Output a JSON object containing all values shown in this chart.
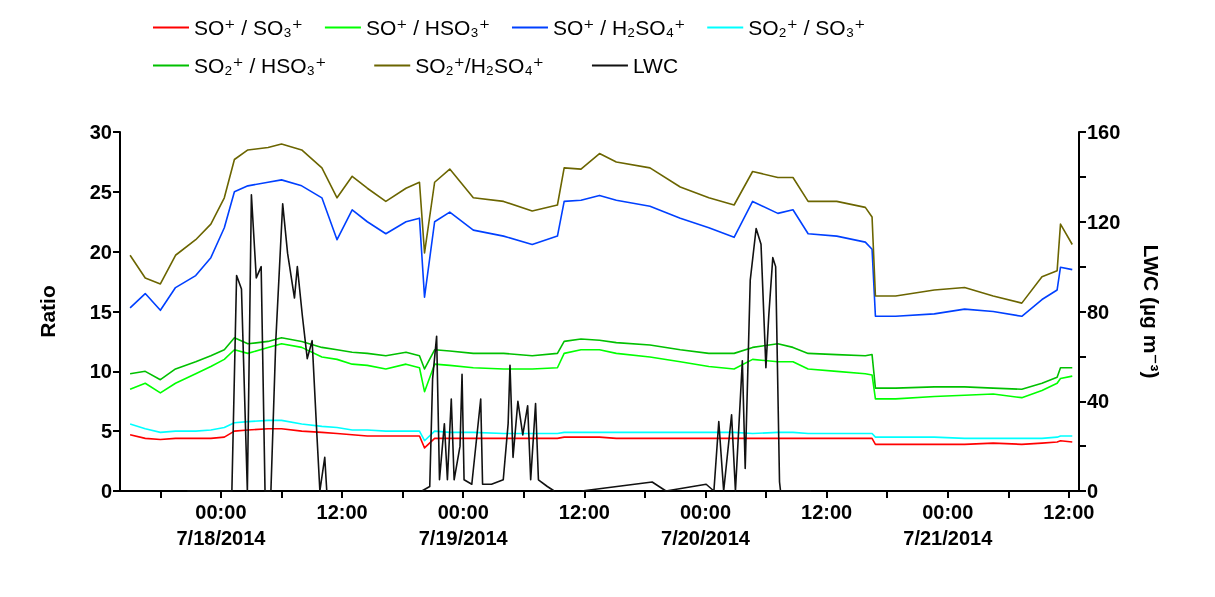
{
  "chart_data": {
    "type": "line",
    "ylabel": "Ratio",
    "y2label": "LWC (µg m⁻³)",
    "x": [
      "2014-07-17T15:00",
      "2014-07-17T16:30",
      "2014-07-17T18:00",
      "2014-07-17T19:30",
      "2014-07-17T21:30",
      "2014-07-17T23:00",
      "2014-07-18T00:20",
      "2014-07-18T01:20",
      "2014-07-18T02:40",
      "2014-07-18T04:40",
      "2014-07-18T06:00",
      "2014-07-18T08:00",
      "2014-07-18T10:00",
      "2014-07-18T11:30",
      "2014-07-18T13:00",
      "2014-07-18T14:30",
      "2014-07-18T16:20",
      "2014-07-18T18:20",
      "2014-07-18T19:40",
      "2014-07-18T20:10",
      "2014-07-18T21:10",
      "2014-07-18T22:40",
      "2014-07-19T01:00",
      "2014-07-19T04:00",
      "2014-07-19T06:50",
      "2014-07-19T09:20",
      "2014-07-19T10:00",
      "2014-07-19T11:40",
      "2014-07-19T13:30",
      "2014-07-19T15:10",
      "2014-07-19T18:30",
      "2014-07-19T21:30",
      "2014-07-20T00:20",
      "2014-07-20T02:50",
      "2014-07-20T04:40",
      "2014-07-20T07:10",
      "2014-07-20T08:40",
      "2014-07-20T10:10",
      "2014-07-20T13:00",
      "2014-07-20T15:50",
      "2014-07-20T16:30",
      "2014-07-20T16:50",
      "2014-07-20T18:50",
      "2014-07-20T22:40",
      "2014-07-21T01:40",
      "2014-07-21T04:30",
      "2014-07-21T07:20",
      "2014-07-21T09:20",
      "2014-07-21T10:50",
      "2014-07-21T11:10",
      "2014-07-21T12:20"
    ],
    "series": [
      {
        "name": "SO⁺ / SO₃⁺",
        "color": "#ff0000",
        "values": [
          4.7,
          4.4,
          4.3,
          4.4,
          4.4,
          4.4,
          4.5,
          5,
          5.1,
          5.2,
          5.2,
          5,
          4.9,
          4.8,
          4.7,
          4.6,
          4.6,
          4.6,
          4.6,
          3.6,
          4.4,
          4.4,
          4.4,
          4.4,
          4.4,
          4.4,
          4.5,
          4.5,
          4.5,
          4.4,
          4.4,
          4.4,
          4.4,
          4.4,
          4.4,
          4.4,
          4.4,
          4.4,
          4.4,
          4.4,
          4.4,
          3.9,
          3.9,
          3.9,
          3.9,
          4,
          3.9,
          4,
          4.1,
          4.2,
          4.1
        ]
      },
      {
        "name": "SO⁺ / HSO₃⁺",
        "color": "#00ff00",
        "values": [
          8.5,
          9,
          8.2,
          9,
          9.8,
          10.4,
          11,
          11.8,
          11.5,
          12,
          12.3,
          12,
          11.2,
          11,
          10.6,
          10.5,
          10.2,
          10.6,
          10.3,
          8.3,
          10.6,
          10.5,
          10.3,
          10.2,
          10.2,
          10.3,
          11.5,
          11.8,
          11.8,
          11.5,
          11.2,
          10.8,
          10.4,
          10.2,
          11,
          10.8,
          10.8,
          10.2,
          10,
          9.8,
          9.7,
          7.7,
          7.7,
          7.9,
          8,
          8.1,
          7.8,
          8.4,
          9,
          9.4,
          9.6
        ]
      },
      {
        "name": "SO⁺ / H₂SO₄⁺",
        "color": "#0040ff",
        "values": [
          15.3,
          16.5,
          15.1,
          17,
          18,
          19.5,
          22,
          25,
          25.5,
          25.8,
          26,
          25.5,
          24.5,
          21,
          23.5,
          22.5,
          21.5,
          22.5,
          22.8,
          16.2,
          22.5,
          23.3,
          21.8,
          21.3,
          20.6,
          21.3,
          24.2,
          24.3,
          24.7,
          24.3,
          23.8,
          22.8,
          22,
          21.2,
          24.2,
          23.2,
          23.5,
          21.5,
          21.3,
          20.8,
          20.2,
          14.6,
          14.6,
          14.8,
          15.2,
          15,
          14.6,
          16,
          16.8,
          18.7,
          18.5
        ]
      },
      {
        "name": "SO₂⁺ / SO₃⁺",
        "color": "#00ffff",
        "values": [
          5.6,
          5.2,
          4.9,
          5,
          5,
          5.1,
          5.3,
          5.7,
          5.8,
          5.9,
          5.9,
          5.6,
          5.4,
          5.3,
          5.1,
          5.1,
          5,
          5,
          5,
          4.2,
          5,
          4.9,
          4.9,
          4.8,
          4.8,
          4.8,
          4.9,
          4.9,
          4.9,
          4.9,
          4.9,
          4.9,
          4.9,
          4.9,
          4.8,
          4.9,
          4.9,
          4.8,
          4.8,
          4.8,
          4.8,
          4.5,
          4.5,
          4.5,
          4.4,
          4.4,
          4.4,
          4.4,
          4.5,
          4.6,
          4.6
        ]
      },
      {
        "name": "SO₂⁺ / HSO₃⁺",
        "color": "#00c000",
        "values": [
          9.8,
          10,
          9.3,
          10.2,
          10.8,
          11.3,
          11.8,
          12.8,
          12.3,
          12.5,
          12.8,
          12.5,
          12,
          11.8,
          11.6,
          11.5,
          11.3,
          11.6,
          11.3,
          10.2,
          11.8,
          11.7,
          11.5,
          11.5,
          11.3,
          11.5,
          12.5,
          12.7,
          12.6,
          12.4,
          12.2,
          11.8,
          11.5,
          11.5,
          12.0,
          12.3,
          12,
          11.5,
          11.4,
          11.3,
          11.4,
          8.6,
          8.6,
          8.7,
          8.7,
          8.6,
          8.5,
          9,
          9.5,
          10.3,
          10.3
        ]
      },
      {
        "name": "SO₂⁺/H₂SO₄⁺",
        "color": "#6b6500",
        "values": [
          19.7,
          17.8,
          17.3,
          19.7,
          21,
          22.3,
          24.5,
          27.7,
          28.5,
          28.7,
          29,
          28.5,
          27,
          24.5,
          26.3,
          25.3,
          24.2,
          25.3,
          25.8,
          19.9,
          25.8,
          26.9,
          24.5,
          24.2,
          23.4,
          23.9,
          27,
          26.9,
          28.2,
          27.5,
          27,
          25.4,
          24.5,
          23.9,
          26.7,
          26.2,
          26.2,
          24.2,
          24.2,
          23.7,
          22.9,
          16.3,
          16.3,
          16.8,
          17,
          16.3,
          15.7,
          17.9,
          18.4,
          22.3,
          20.6
        ]
      },
      {
        "name": "LWC",
        "color": "#111111",
        "axis": "y2",
        "x": [
          "2014-07-17T20:40",
          "2014-07-18T01:05",
          "2014-07-18T01:33",
          "2014-07-18T02:02",
          "2014-07-18T02:37",
          "2014-07-18T03:01",
          "2014-07-18T03:30",
          "2014-07-18T03:59",
          "2014-07-18T04:22",
          "2014-07-18T04:57",
          "2014-07-18T05:26",
          "2014-07-18T06:07",
          "2014-07-18T06:36",
          "2014-07-18T07:17",
          "2014-07-18T07:34",
          "2014-07-18T08:04",
          "2014-07-18T08:33",
          "2014-07-18T09:02",
          "2014-07-18T09:31",
          "2014-07-18T09:48",
          "2014-07-18T10:17",
          "2014-07-18T10:29",
          "2014-07-18T15:00",
          "2014-07-18T19:54",
          "2014-07-18T20:41",
          "2014-07-18T20:58",
          "2014-07-18T21:22",
          "2014-07-18T21:39",
          "2014-07-18T22:08",
          "2014-07-18T22:26",
          "2014-07-18T22:49",
          "2014-07-18T23:06",
          "2014-07-18T23:41",
          "2014-07-18T23:53",
          "2014-07-19T00:05",
          "2014-07-19T00:51",
          "2014-07-19T01:44",
          "2014-07-19T01:55",
          "2014-07-19T02:48",
          "2014-07-19T03:58",
          "2014-07-19T04:27",
          "2014-07-19T04:38",
          "2014-07-19T04:56",
          "2014-07-19T05:25",
          "2014-07-19T05:54",
          "2014-07-19T06:23",
          "2014-07-19T06:41",
          "2014-07-19T07:10",
          "2014-07-19T07:27",
          "2014-07-19T08:20",
          "2014-07-19T09:01",
          "2014-07-19T10:30",
          "2014-07-19T11:44",
          "2014-07-19T18:43",
          "2014-07-19T20:05",
          "2014-07-20T00:04",
          "2014-07-20T00:50",
          "2014-07-20T01:19",
          "2014-07-20T01:48",
          "2014-07-20T02:35",
          "2014-07-20T02:58",
          "2014-07-20T03:39",
          "2014-07-20T03:56",
          "2014-07-20T04:26",
          "2014-07-20T05:01",
          "2014-07-20T05:30",
          "2014-07-20T05:59",
          "2014-07-20T06:16",
          "2014-07-20T06:40",
          "2014-07-20T06:57",
          "2014-07-20T07:20",
          "2014-07-20T07:26",
          "2014-07-20T10:27"
        ],
        "values": [
          0,
          0,
          96,
          90,
          0,
          132,
          95,
          100,
          0,
          0,
          67,
          128,
          106,
          86,
          100,
          78,
          59,
          67,
          24,
          0,
          15,
          0,
          null,
          0,
          2,
          50,
          69,
          5,
          30,
          5,
          41,
          5,
          20,
          52,
          5,
          3,
          41,
          3,
          3,
          5,
          30,
          56,
          15,
          40,
          25,
          38,
          5,
          39,
          5,
          2,
          0,
          null,
          0,
          4,
          0,
          3,
          0,
          31,
          0,
          34,
          0,
          58,
          10,
          94,
          117,
          110,
          55,
          78,
          104,
          100,
          4,
          0,
          0
        ]
      }
    ],
    "xlim": [
      "2014-07-17T14:00",
      "2014-07-21T13:00"
    ],
    "xticks": [
      {
        "value": "2014-07-17T18:00",
        "label": null
      },
      {
        "value": "2014-07-18T00:00",
        "label": "00:00\n7/18/2014"
      },
      {
        "value": "2014-07-18T06:00",
        "label": null
      },
      {
        "value": "2014-07-18T12:00",
        "label": "12:00"
      },
      {
        "value": "2014-07-18T18:00",
        "label": null
      },
      {
        "value": "2014-07-19T00:00",
        "label": "00:00\n7/19/2014"
      },
      {
        "value": "2014-07-19T06:00",
        "label": null
      },
      {
        "value": "2014-07-19T12:00",
        "label": "12:00"
      },
      {
        "value": "2014-07-19T18:00",
        "label": null
      },
      {
        "value": "2014-07-20T00:00",
        "label": "00:00\n7/20/2014"
      },
      {
        "value": "2014-07-20T06:00",
        "label": null
      },
      {
        "value": "2014-07-20T12:00",
        "label": "12:00"
      },
      {
        "value": "2014-07-20T18:00",
        "label": null
      },
      {
        "value": "2014-07-21T00:00",
        "label": "00:00\n7/21/2014"
      },
      {
        "value": "2014-07-21T06:00",
        "label": null
      },
      {
        "value": "2014-07-21T12:00",
        "label": "12:00"
      }
    ],
    "ylim": [
      0,
      30
    ],
    "yticks": [
      0,
      5,
      10,
      15,
      20,
      25,
      30
    ],
    "y2lim": [
      0,
      160
    ],
    "y2ticks": [
      0,
      {
        "value": 20,
        "label": null
      },
      40,
      {
        "value": 60,
        "label": null
      },
      80,
      {
        "value": 100,
        "label": null
      },
      120,
      {
        "value": 140,
        "label": null
      },
      160
    ],
    "grid": false,
    "legend": "top",
    "marker": "none"
  }
}
